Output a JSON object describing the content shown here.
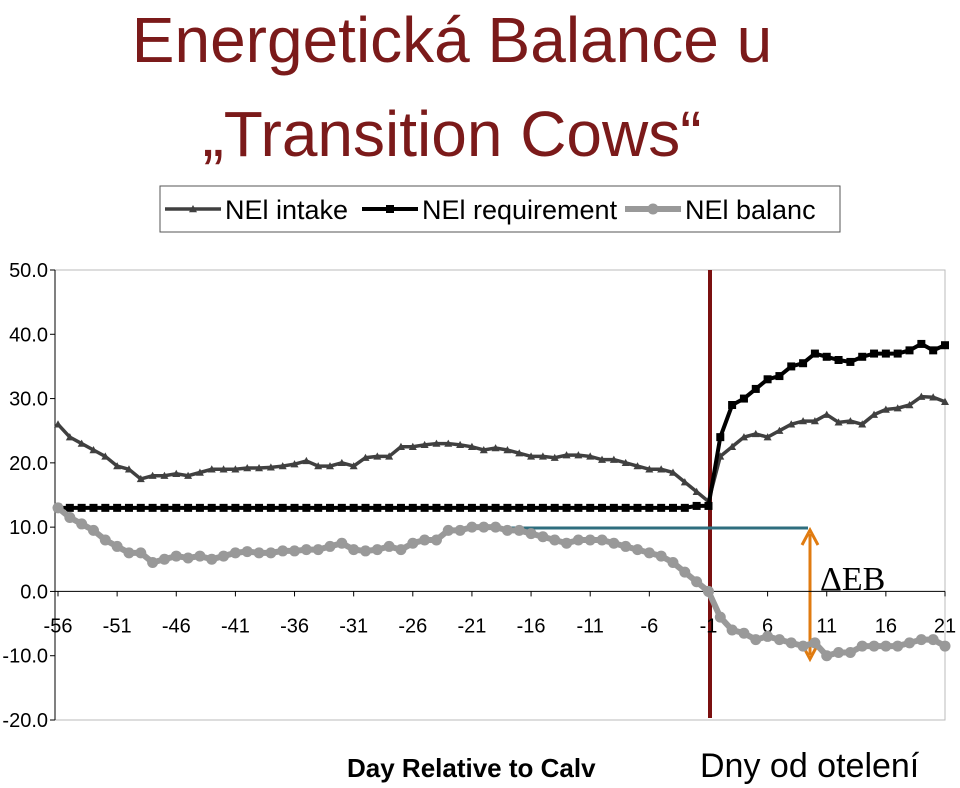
{
  "chart_data": {
    "type": "line",
    "title": [
      "Energetická Balance u",
      "„Transition Cows“"
    ],
    "x_label": "Day Relative to Calv",
    "annotations": [
      "ΔEB",
      "Dny od otelení"
    ],
    "legend": "top",
    "categories": [
      "-56",
      null,
      null,
      null,
      null,
      "-51",
      null,
      null,
      null,
      null,
      "-46",
      null,
      null,
      null,
      null,
      "-41",
      null,
      null,
      null,
      null,
      "-36",
      null,
      null,
      null,
      null,
      "-31",
      null,
      null,
      null,
      null,
      "-26",
      null,
      null,
      null,
      null,
      "-21",
      null,
      null,
      null,
      null,
      "-16",
      null,
      null,
      null,
      null,
      "-11",
      null,
      null,
      null,
      null,
      "-6",
      null,
      null,
      null,
      null,
      "-1",
      null,
      null,
      null,
      null,
      "6",
      null,
      null,
      null,
      null,
      "11",
      null,
      null,
      null,
      null,
      "16",
      null,
      null,
      null,
      null,
      "21"
    ],
    "ylim": [
      -20,
      50
    ],
    "yticks": [
      {
        "value": -20,
        "label": "-20.0"
      },
      {
        "value": -10,
        "label": "-10.0"
      },
      {
        "value": 0,
        "label": "0.0"
      },
      {
        "value": 10,
        "label": "10.0"
      },
      {
        "value": 20,
        "label": "20.0"
      },
      {
        "value": 30,
        "label": "30.0"
      },
      {
        "value": 40,
        "label": "40.0"
      },
      {
        "value": 50,
        "label": "50.0"
      }
    ],
    "series": [
      {
        "name": "NEl intake",
        "color": "#404040",
        "marker": "triangle",
        "values": [
          26,
          24,
          23,
          22,
          21,
          19.5,
          19,
          17.5,
          18,
          18,
          18.3,
          18,
          18.5,
          19,
          19,
          19,
          19.2,
          19.2,
          19.3,
          19.5,
          19.8,
          20.3,
          19.5,
          19.5,
          20,
          19.5,
          20.8,
          21,
          21,
          22.5,
          22.5,
          22.8,
          23,
          23,
          22.8,
          22.5,
          22,
          22.3,
          22,
          21.5,
          21,
          21,
          20.8,
          21.2,
          21.2,
          21,
          20.5,
          20.5,
          20,
          19.5,
          19,
          19,
          18.5,
          17,
          15.5,
          14,
          21,
          22.5,
          24,
          24.5,
          24,
          25,
          26,
          26.5,
          26.5,
          27.5,
          26.3,
          26.5,
          26,
          27.5,
          28.3,
          28.5,
          29,
          30.3,
          30.2,
          29.5
        ]
      },
      {
        "name": "NEl requirement",
        "color": "#000000",
        "marker": "square",
        "values": [
          13,
          13,
          13,
          13,
          13,
          13,
          13,
          13,
          13,
          13,
          13,
          13,
          13,
          13,
          13,
          13,
          13,
          13,
          13,
          13,
          13,
          13,
          13,
          13,
          13,
          13,
          13,
          13,
          13,
          13,
          13,
          13,
          13,
          13,
          13,
          13,
          13,
          13,
          13,
          13,
          13,
          13,
          13,
          13,
          13,
          13,
          13,
          13,
          13,
          13,
          13,
          13,
          13,
          13,
          13.3,
          13.3,
          24,
          29,
          30,
          31.5,
          33,
          33.5,
          35,
          35.5,
          37,
          36.5,
          36,
          35.7,
          36.5,
          37,
          37,
          37,
          37.5,
          38.5,
          37.5,
          38.3
        ]
      },
      {
        "name": "NEl balanc",
        "color": "#999999",
        "marker": "circle",
        "values": [
          13,
          11.5,
          10.5,
          9.5,
          8,
          7,
          6,
          6,
          4.5,
          5,
          5.5,
          5.2,
          5.5,
          5,
          5.5,
          6,
          6.2,
          6,
          6,
          6.3,
          6.3,
          6.5,
          6.5,
          7,
          7.5,
          6.5,
          6.3,
          6.5,
          7,
          6.5,
          7.5,
          8,
          8,
          9.5,
          9.5,
          10,
          10,
          10,
          9.5,
          9.5,
          9,
          8.5,
          8,
          7.5,
          8,
          8,
          8,
          7.5,
          7,
          6.5,
          6,
          5.5,
          4.5,
          3,
          1.5,
          0,
          -4,
          -6,
          -6.5,
          -7.5,
          -7,
          -7.5,
          -8,
          -8.5,
          -8,
          -10,
          -9.5,
          -9.5,
          -8.5,
          -8.5,
          -8.5,
          -8.5,
          -8,
          -7.5,
          -7.5,
          -8.5
        ]
      }
    ]
  }
}
